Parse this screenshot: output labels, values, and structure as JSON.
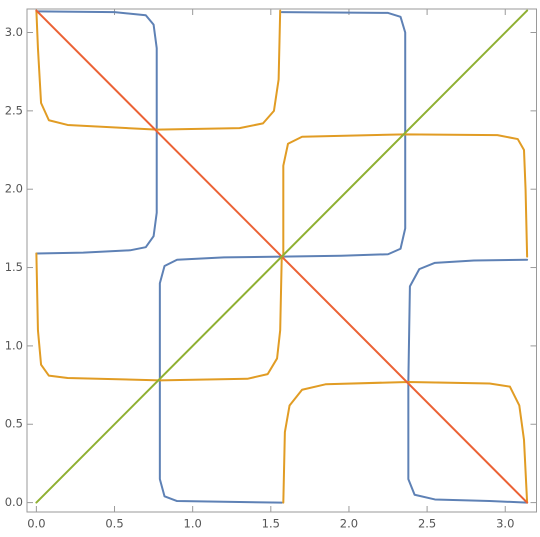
{
  "chart_data": {
    "type": "line",
    "xlim": [
      -0.06,
      3.2
    ],
    "ylim": [
      -0.06,
      3.15
    ],
    "xticks": [
      {
        "value": 0,
        "label": "0.0"
      },
      {
        "value": 0.5,
        "label": "0.5"
      },
      {
        "value": 1,
        "label": "1.0"
      },
      {
        "value": 1.5,
        "label": "1.5"
      },
      {
        "value": 2,
        "label": "2.0"
      },
      {
        "value": 2.5,
        "label": "2.5"
      },
      {
        "value": 3,
        "label": "3.0"
      }
    ],
    "yticks": [
      {
        "value": 0,
        "label": "0.0"
      },
      {
        "value": 0.5,
        "label": "0.5"
      },
      {
        "value": 1,
        "label": "1.0"
      },
      {
        "value": 1.5,
        "label": "1.5"
      },
      {
        "value": 2,
        "label": "2.0"
      },
      {
        "value": 2.5,
        "label": "2.5"
      },
      {
        "value": 3,
        "label": "3.0"
      }
    ],
    "series": [
      {
        "color": "#5e81b5",
        "x": [
          0,
          0.3,
          0.6,
          0.7,
          0.75,
          0.77,
          0.77,
          0.77,
          0.75,
          0.7,
          0.5,
          0,
          null,
          1.57,
          1.2,
          0.9,
          0.82,
          0.79,
          0.79,
          0.79,
          0.82,
          0.9,
          1.2,
          1.57,
          1.95,
          2.25,
          2.33,
          2.36,
          2.36,
          2.36,
          2.33,
          2.25,
          1.57,
          null,
          3.14,
          2.8,
          2.55,
          2.45,
          2.39,
          2.38,
          2.38,
          2.42,
          2.55,
          2.9,
          3.14
        ],
        "values": [
          1.59,
          1.595,
          1.61,
          1.63,
          1.7,
          1.85,
          2.38,
          2.9,
          3.05,
          3.11,
          3.13,
          3.135,
          null,
          0,
          0.005,
          0.01,
          0.04,
          0.15,
          0.78,
          1.4,
          1.51,
          1.55,
          1.565,
          1.57,
          1.575,
          1.585,
          1.62,
          1.75,
          2.35,
          3.0,
          3.1,
          3.125,
          3.13,
          null,
          1.55,
          1.545,
          1.53,
          1.49,
          1.38,
          0.77,
          0.15,
          0.05,
          0.02,
          0.01,
          0
        ]
      },
      {
        "color": "#e19c24",
        "x": [
          0,
          0.01,
          0.03,
          0.08,
          0.2,
          0.77,
          1.3,
          1.45,
          1.52,
          1.55,
          1.56,
          null,
          1.58,
          1.58,
          1.61,
          1.7,
          2.36,
          2.95,
          3.08,
          3.12,
          3.13,
          3.14,
          null,
          0,
          0.01,
          0.03,
          0.08,
          0.2,
          0.79,
          1.35,
          1.48,
          1.54,
          1.56,
          1.57,
          null,
          1.58,
          1.59,
          1.62,
          1.7,
          1.85,
          2.38,
          2.9,
          3.03,
          3.09,
          3.12,
          3.14
        ],
        "values": [
          3.14,
          2.9,
          2.55,
          2.44,
          2.41,
          2.38,
          2.39,
          2.42,
          2.5,
          2.7,
          3.14,
          null,
          1.57,
          2.15,
          2.29,
          2.335,
          2.35,
          2.345,
          2.32,
          2.25,
          2.0,
          1.57,
          null,
          1.59,
          1.1,
          0.88,
          0.81,
          0.795,
          0.78,
          0.79,
          0.82,
          0.92,
          1.1,
          1.57,
          null,
          0,
          0.45,
          0.62,
          0.72,
          0.755,
          0.77,
          0.76,
          0.74,
          0.62,
          0.4,
          0
        ]
      },
      {
        "color": "#eb6235",
        "x": [
          0,
          3.14
        ],
        "values": [
          3.14,
          0
        ]
      },
      {
        "color": "#8fb032",
        "x": [
          0,
          3.14
        ],
        "values": [
          0,
          3.14
        ]
      }
    ]
  }
}
